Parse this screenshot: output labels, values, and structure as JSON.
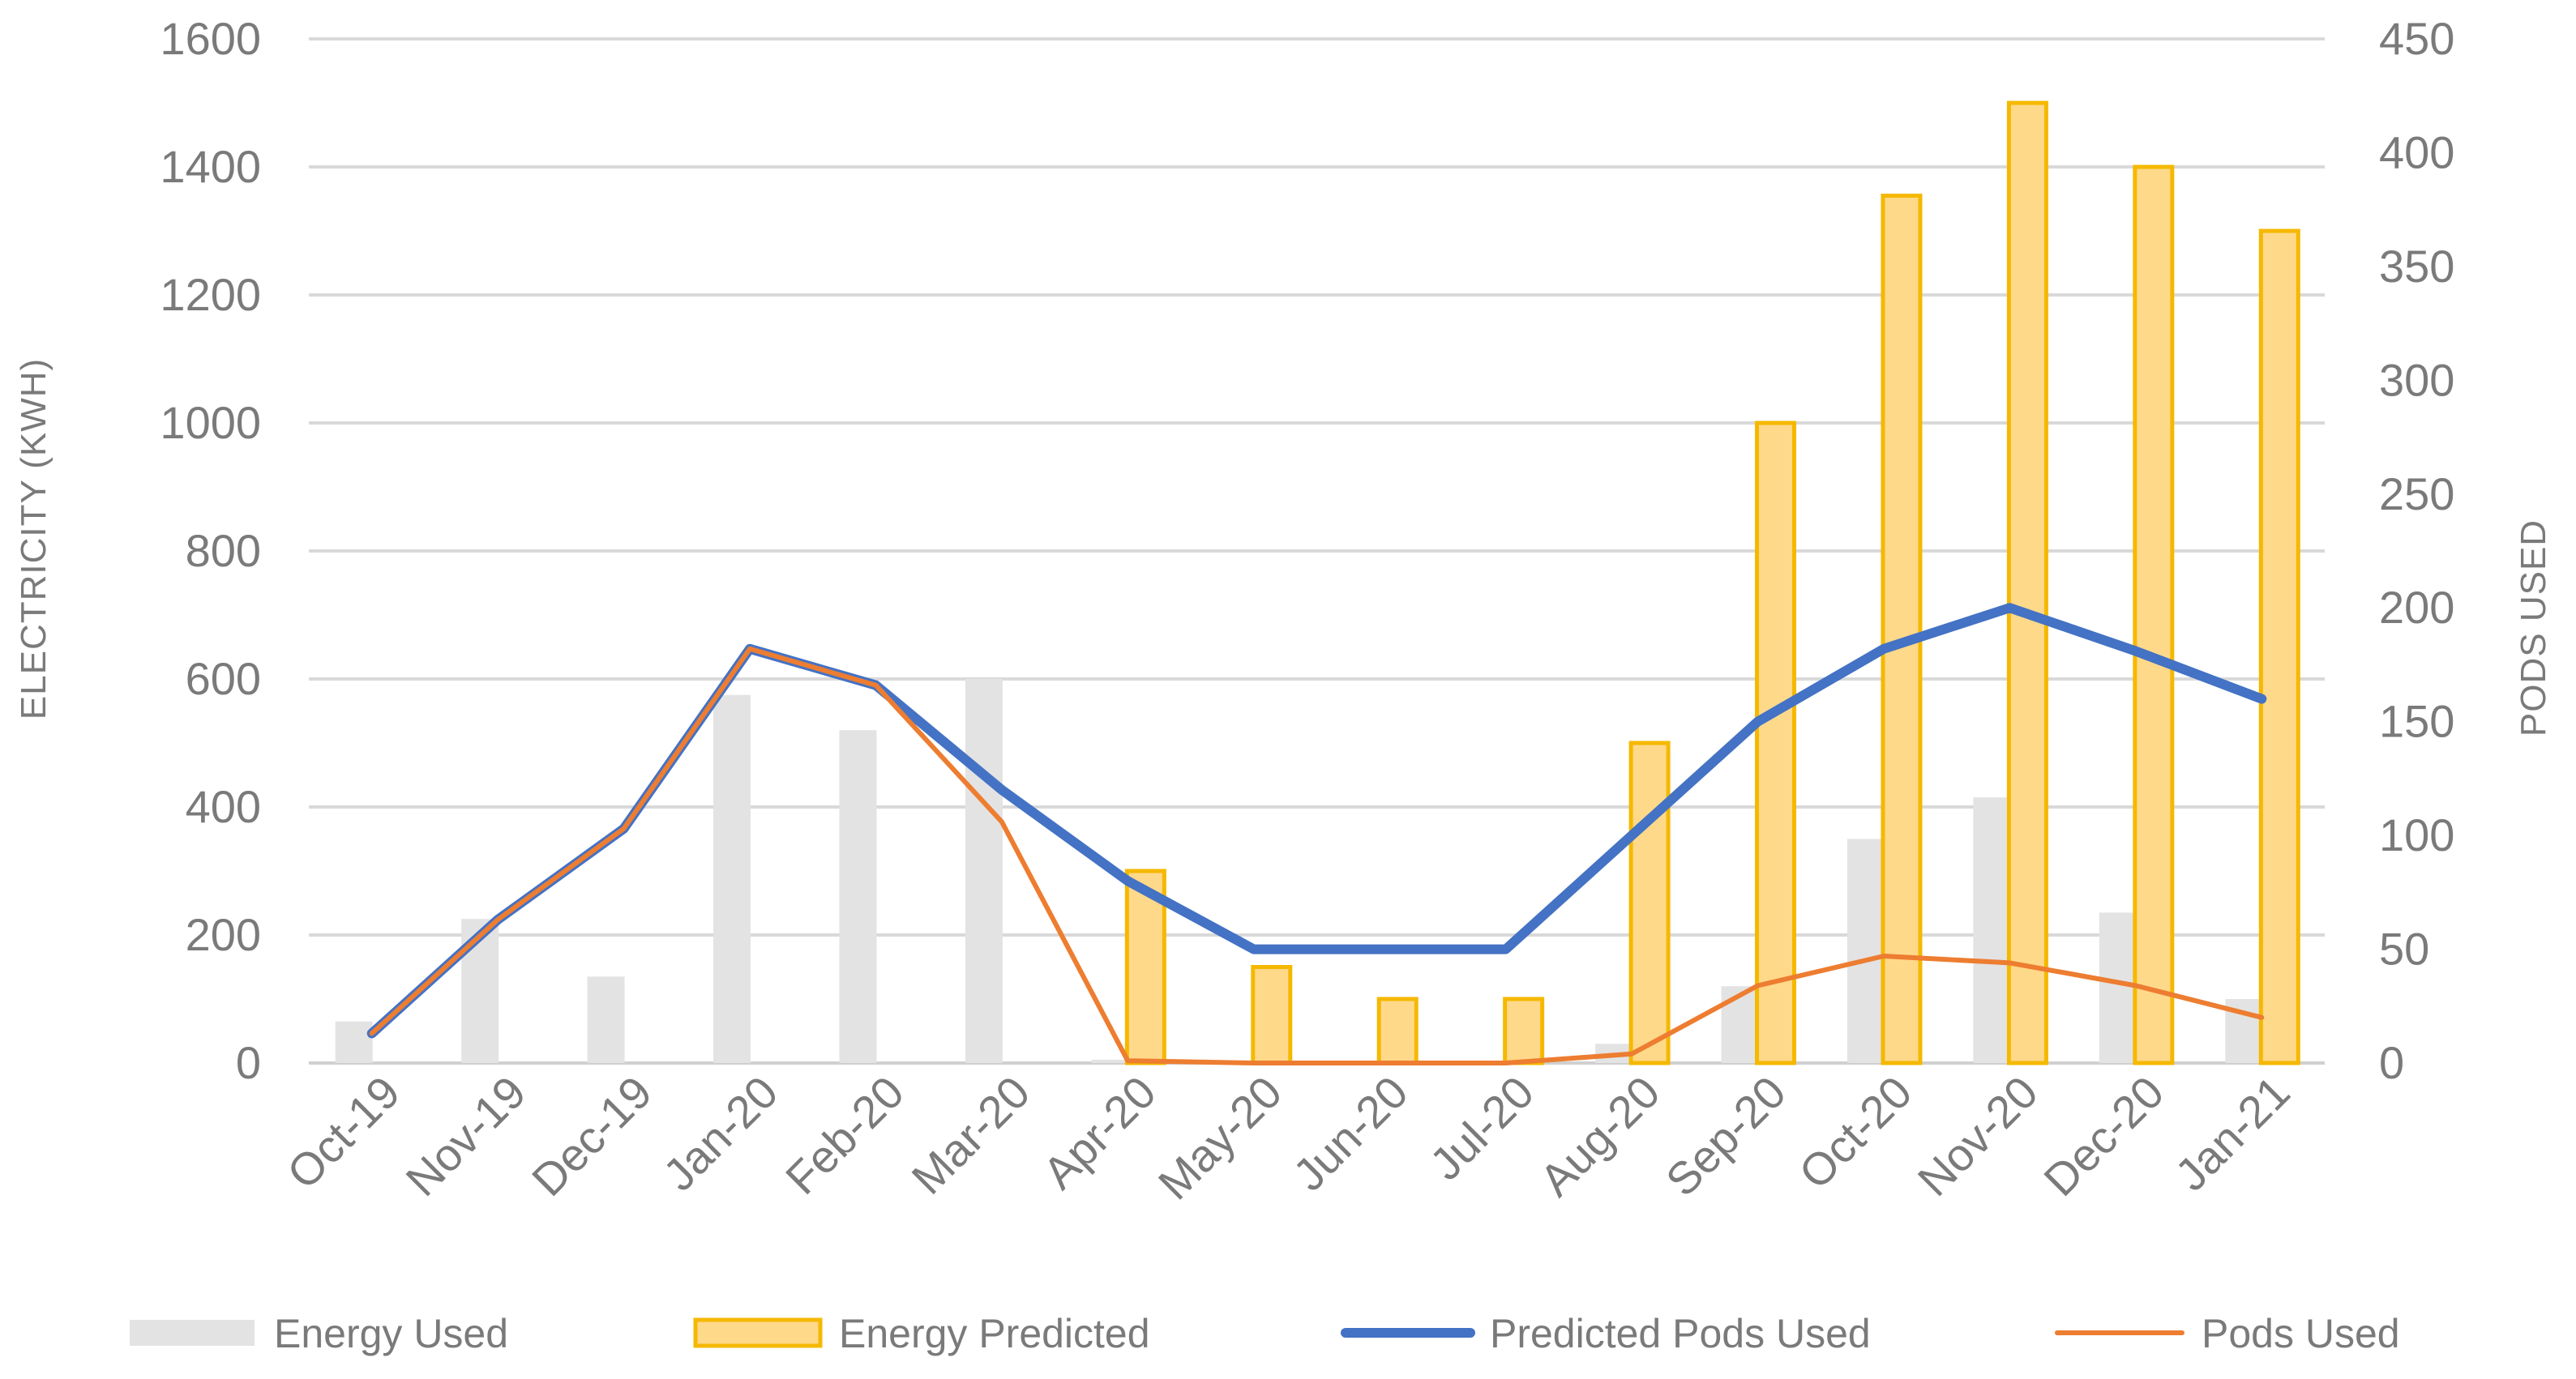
{
  "chart_data": {
    "type": "bar+line",
    "categories": [
      "Oct-19",
      "Nov-19",
      "Dec-19",
      "Jan-20",
      "Feb-20",
      "Mar-20",
      "Apr-20",
      "May-20",
      "Jun-20",
      "Jul-20",
      "Aug-20",
      "Sep-20",
      "Oct-20",
      "Nov-20",
      "Dec-20",
      "Jan-21"
    ],
    "y_left": {
      "label": "ELECTRICITY (KWH)",
      "min": 0,
      "max": 1600,
      "step": 200,
      "ticks": [
        "0",
        "200",
        "400",
        "600",
        "800",
        "1000",
        "1200",
        "1400",
        "1600"
      ]
    },
    "y_right": {
      "label": "PODS USED",
      "min": 0,
      "max": 450,
      "step": 50,
      "ticks": [
        "0",
        "50",
        "100",
        "150",
        "200",
        "250",
        "300",
        "350",
        "400",
        "450"
      ]
    },
    "grid": true,
    "legend_position": "bottom",
    "series": [
      {
        "name": "Energy Used",
        "type": "bar",
        "axis": "left",
        "color": "#e3e3e3",
        "values": [
          65,
          225,
          135,
          575,
          520,
          600,
          5,
          0,
          0,
          0,
          30,
          120,
          350,
          415,
          235,
          100
        ]
      },
      {
        "name": "Energy Predicted",
        "type": "bar",
        "axis": "left",
        "color": "#ffd98a",
        "stroke": "#f5b800",
        "values": [
          0,
          0,
          0,
          0,
          0,
          0,
          300,
          150,
          100,
          100,
          500,
          1000,
          1355,
          1500,
          1400,
          1300
        ]
      },
      {
        "name": "Predicted Pods Used",
        "type": "line",
        "axis": "right",
        "color": "#4472c4",
        "values": [
          13,
          63,
          103,
          182,
          166,
          120,
          80,
          50,
          50,
          50,
          100,
          150,
          182,
          200,
          181,
          160
        ]
      },
      {
        "name": "Pods Used",
        "type": "line",
        "axis": "right",
        "color": "#ed7d31",
        "values": [
          13,
          63,
          103,
          182,
          166,
          106,
          1,
          0,
          0,
          0,
          4,
          34,
          47,
          44,
          34,
          20
        ]
      }
    ]
  }
}
